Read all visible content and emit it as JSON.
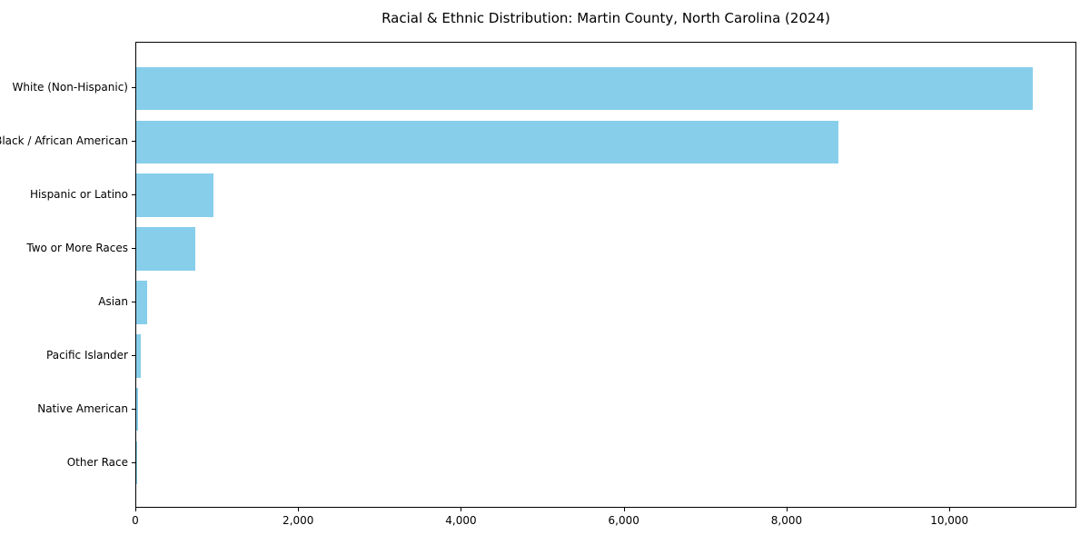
{
  "chart_data": {
    "type": "bar",
    "orientation": "horizontal",
    "title": "Racial & Ethnic Distribution: Martin County, North Carolina (2024)",
    "categories": [
      "White (Non-Hispanic)",
      "Black / African American",
      "Hispanic or Latino",
      "Two or More Races",
      "Asian",
      "Pacific Islander",
      "Native American",
      "Other Race"
    ],
    "values": [
      11010,
      8630,
      950,
      730,
      130,
      55,
      18,
      5
    ],
    "xlabel": "",
    "ylabel": "",
    "xlim": [
      0,
      11560
    ],
    "xticks": [
      0,
      2000,
      4000,
      6000,
      8000,
      10000
    ],
    "xtick_labels": [
      "0",
      "2,000",
      "4,000",
      "6,000",
      "8,000",
      "10,000"
    ],
    "grid": false,
    "legend": null,
    "bar_color": "#87CEEB",
    "background_color": "#ffffff",
    "spine_color": "#000000",
    "text_color": "#000000"
  }
}
